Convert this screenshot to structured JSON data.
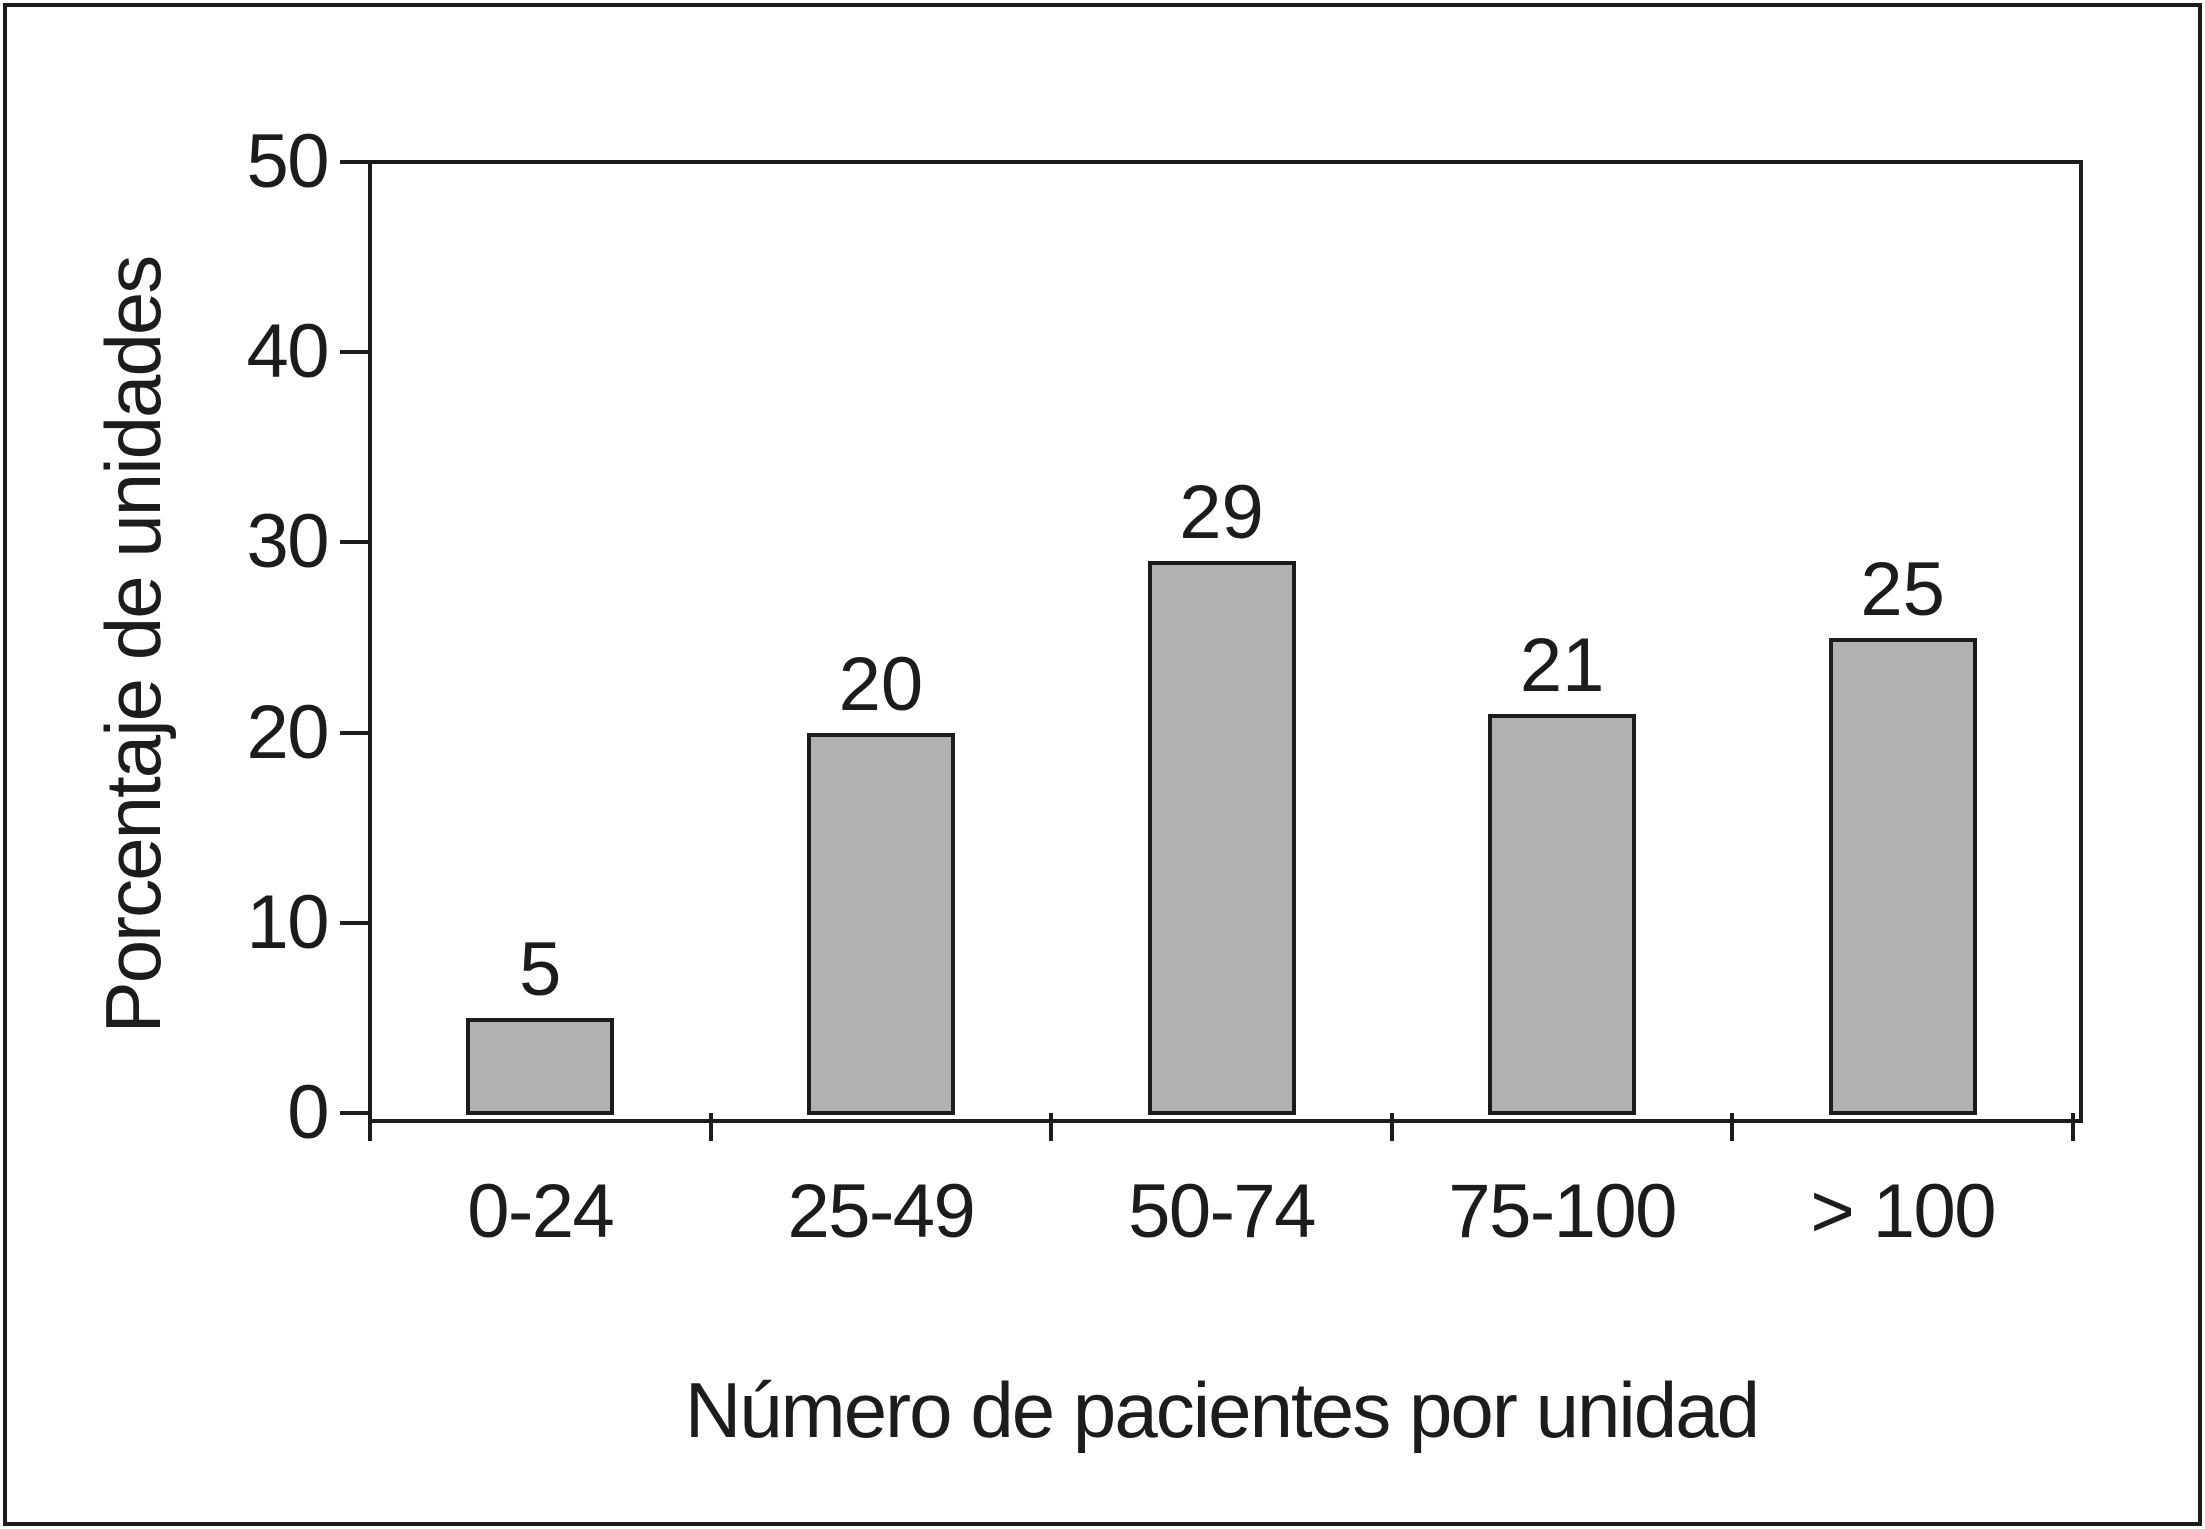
{
  "chart_data": {
    "type": "bar",
    "categories": [
      "0-24",
      "25-49",
      "50-74",
      "75-100",
      "> 100"
    ],
    "values": [
      5,
      20,
      29,
      21,
      25
    ],
    "bar_labels": [
      "5",
      "20",
      "29",
      "21",
      "25"
    ],
    "title": "",
    "xlabel": "Número de pacientes por unidad",
    "ylabel": "Porcentaje de unidades",
    "ylim": [
      0,
      50
    ],
    "yticks": [
      0,
      10,
      20,
      30,
      40,
      50
    ],
    "grid": false,
    "legend_position": "none",
    "colors": {
      "bar_fill": "#b1b1b3",
      "line": "#1c1c1c",
      "background": "#ffffff"
    }
  }
}
